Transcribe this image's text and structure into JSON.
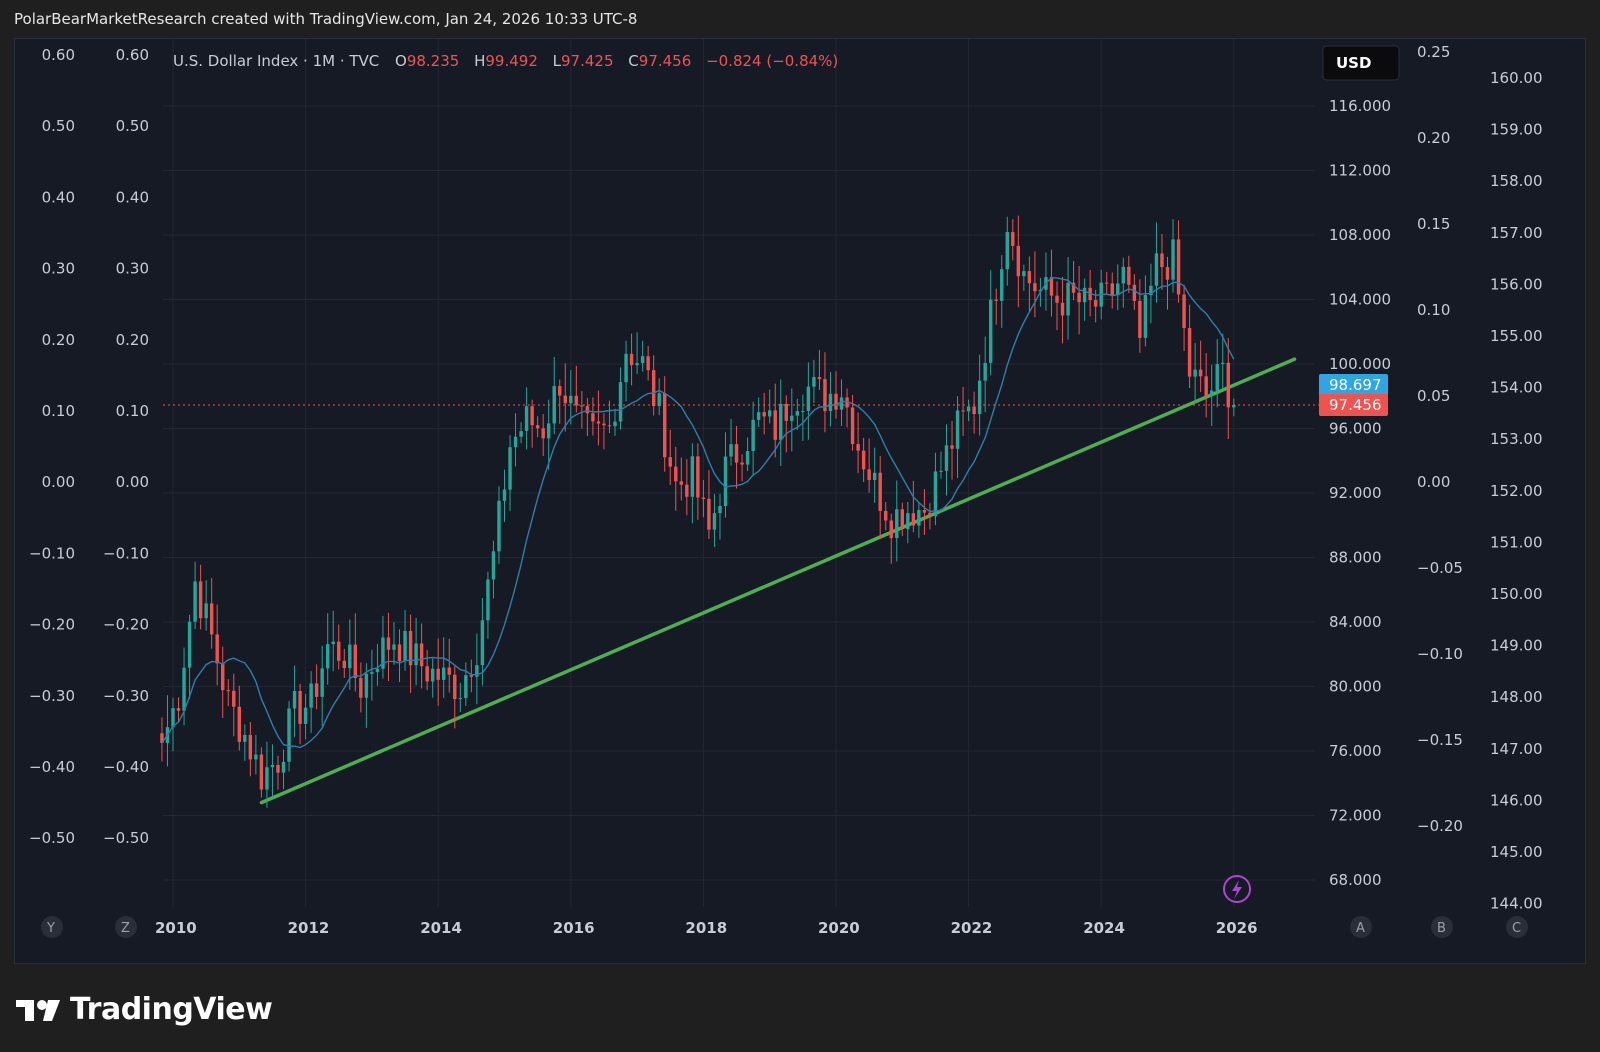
{
  "header": {
    "text": "PolarBearMarketResearch created with TradingView.com, Jan 24, 2026 10:33 UTC-8"
  },
  "legend": {
    "symbol": "U.S. Dollar Index · 1M · TVC",
    "o_label": "O",
    "o_value": "98.235",
    "h_label": "H",
    "h_value": "99.492",
    "l_label": "L",
    "l_value": "97.425",
    "c_label": "C",
    "c_value": "97.456",
    "change": "−0.824 (−0.84%)"
  },
  "currency_button": "USD",
  "axis_letters": {
    "left1": "Y",
    "left2": "Z",
    "right1": "A",
    "right2": "B",
    "right3": "C"
  },
  "price_labels": {
    "ma_value": "98.697",
    "last_value": "97.456"
  },
  "footer": {
    "brand": "TradingView"
  },
  "colors": {
    "up": "#26a69a",
    "down": "#ef5350",
    "ma": "#2e7fa8",
    "trendline": "#4caf50",
    "ma_label_bg": "#2fa6e2",
    "last_label_bg": "#ef5350",
    "background": "#161a25"
  },
  "chart_data": {
    "type": "candlestick",
    "title": "U.S. Dollar Index · 1M · TVC",
    "x_tick_labels": [
      "2010",
      "2012",
      "2014",
      "2016",
      "2018",
      "2020",
      "2022",
      "2024",
      "2026"
    ],
    "price_axis": {
      "ticks": [
        "116.000",
        "112.000",
        "108.000",
        "104.000",
        "100.000",
        "96.000",
        "92.000",
        "88.000",
        "84.000",
        "80.000",
        "76.000",
        "72.000",
        "68.000"
      ],
      "range": [
        66,
        119
      ]
    },
    "left_axis_1": [
      "0.60",
      "0.50",
      "0.40",
      "0.30",
      "0.20",
      "0.10",
      "0.00",
      "−0.10",
      "−0.20",
      "−0.30",
      "−0.40",
      "−0.50"
    ],
    "left_axis_2": [
      "0.60",
      "0.50",
      "0.40",
      "0.30",
      "0.20",
      "0.10",
      "0.00",
      "−0.10",
      "−0.20",
      "−0.30",
      "−0.40",
      "−0.50"
    ],
    "right_axis_1": [
      "0.25",
      "0.20",
      "0.15",
      "0.10",
      "0.05",
      "0.00",
      "−0.05",
      "−0.10",
      "−0.15",
      "−0.20"
    ],
    "right_axis_2": [
      "160.00",
      "159.00",
      "158.00",
      "157.00",
      "156.00",
      "155.00",
      "154.00",
      "153.00",
      "152.00",
      "151.00",
      "150.00",
      "149.00",
      "148.00",
      "147.00",
      "146.00",
      "145.00",
      "144.00"
    ],
    "close_series": {
      "dates": [
        "2009-11",
        "2010-02",
        "2010-05",
        "2010-08",
        "2010-11",
        "2011-02",
        "2011-05",
        "2011-08",
        "2011-11",
        "2012-02",
        "2012-05",
        "2012-08",
        "2012-11",
        "2013-02",
        "2013-05",
        "2013-08",
        "2013-11",
        "2014-02",
        "2014-05",
        "2014-08",
        "2014-11",
        "2015-02",
        "2015-05",
        "2015-08",
        "2015-11",
        "2016-02",
        "2016-05",
        "2016-08",
        "2016-11",
        "2017-02",
        "2017-05",
        "2017-08",
        "2017-11",
        "2018-02",
        "2018-05",
        "2018-08",
        "2018-11",
        "2019-02",
        "2019-05",
        "2019-08",
        "2019-11",
        "2020-02",
        "2020-05",
        "2020-08",
        "2020-11",
        "2021-02",
        "2021-05",
        "2021-08",
        "2021-11",
        "2022-02",
        "2022-05",
        "2022-08",
        "2022-11",
        "2023-02",
        "2023-05",
        "2023-08",
        "2023-11",
        "2024-02",
        "2024-05",
        "2024-08",
        "2024-11",
        "2025-02",
        "2025-05",
        "2025-08",
        "2025-11",
        "2026-01"
      ],
      "values": [
        76.5,
        79.5,
        86.5,
        83.0,
        79.0,
        77.0,
        74.5,
        75.5,
        78.5,
        79.0,
        82.5,
        82.0,
        80.0,
        82.0,
        83.0,
        82.0,
        81.0,
        80.5,
        80.0,
        82.5,
        88.0,
        95.0,
        96.5,
        96.0,
        99.0,
        96.5,
        95.5,
        96.0,
        101.0,
        100.0,
        97.0,
        92.5,
        93.0,
        89.5,
        93.5,
        95.0,
        96.5,
        96.0,
        98.0,
        98.5,
        98.0,
        98.5,
        95.0,
        92.5,
        90.5,
        91.0,
        91.0,
        93.5,
        96.0,
        97.5,
        103.0,
        109.0,
        105.5,
        104.5,
        104.0,
        104.0,
        103.5,
        104.0,
        105.5,
        101.5,
        106.0,
        106.5,
        99.5,
        98.0,
        99.5,
        97.456
      ]
    },
    "moving_average": {
      "name": "",
      "value_last": 98.697
    },
    "last_price": 97.456,
    "trendline": {
      "from": {
        "date": "2011-05",
        "price": 72.8
      },
      "to": {
        "date": "2026-12",
        "price": 100.3
      }
    }
  }
}
